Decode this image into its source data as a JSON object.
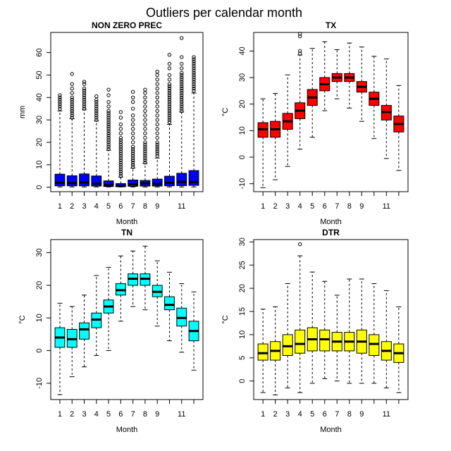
{
  "title": "Outliers per calendar month",
  "chart_data": [
    {
      "type": "box",
      "title": "NON ZERO PREC",
      "xlabel": "Month",
      "ylabel": "mm",
      "fill": "#0000ff",
      "ylim": [
        -2,
        69
      ],
      "yticks": [
        0,
        10,
        20,
        30,
        40,
        50,
        60
      ],
      "xticks": [
        "1",
        "2",
        "3",
        "4",
        "5",
        "6",
        "7",
        "8",
        "9",
        "11"
      ],
      "boxes": [
        {
          "month": 1,
          "min": 0.1,
          "q1": 0.6,
          "median": 2.0,
          "q3": 5.8,
          "max": 34.0,
          "outliers": [
            35,
            36,
            37,
            38,
            39,
            40,
            41
          ]
        },
        {
          "month": 2,
          "min": 0.1,
          "q1": 0.6,
          "median": 1.8,
          "q3": 5.1,
          "max": 30.5,
          "outliers": [
            31,
            32,
            33,
            34,
            35,
            36,
            37,
            38,
            39,
            40,
            42,
            44,
            46,
            50.5
          ]
        },
        {
          "month": 3,
          "min": 0.1,
          "q1": 0.6,
          "median": 2.1,
          "q3": 5.9,
          "max": 34.5,
          "outliers": [
            35,
            36,
            37,
            38,
            39,
            40,
            41,
            42,
            43,
            44,
            46,
            47
          ]
        },
        {
          "month": 4,
          "min": 0.1,
          "q1": 0.5,
          "median": 1.6,
          "q3": 5.0,
          "max": 29.5,
          "outliers": [
            30,
            31,
            32,
            33,
            34,
            35,
            36,
            37,
            38,
            39,
            40.5
          ]
        },
        {
          "month": 5,
          "min": 0.1,
          "q1": 0.3,
          "median": 0.9,
          "q3": 2.8,
          "max": 16.5,
          "outliers": [
            17,
            18,
            19,
            20,
            21,
            22,
            23,
            24,
            25,
            26,
            27,
            28,
            29,
            30,
            31,
            32,
            33,
            34,
            36,
            38,
            41,
            43.5
          ]
        },
        {
          "month": 6,
          "min": 0.1,
          "q1": 0.2,
          "median": 0.6,
          "q3": 1.6,
          "max": 4.5,
          "outliers": [
            5,
            6,
            7,
            8,
            9,
            10,
            11,
            12,
            13,
            14,
            15,
            16,
            17,
            18,
            19,
            20,
            21,
            22,
            24,
            26,
            28,
            31,
            33.5
          ]
        },
        {
          "month": 7,
          "min": 0.1,
          "q1": 0.4,
          "median": 1.3,
          "q3": 3.2,
          "max": 8.5,
          "outliers": [
            9,
            10,
            11,
            12,
            13,
            14,
            15,
            16,
            17,
            18,
            20,
            22,
            24,
            26,
            28,
            30,
            32,
            35,
            38,
            40,
            42.5
          ]
        },
        {
          "month": 8,
          "min": 0.1,
          "q1": 0.5,
          "median": 1.7,
          "q3": 3.0,
          "max": 10.5,
          "outliers": [
            11,
            12,
            13,
            14,
            15,
            16,
            17,
            18,
            19,
            20,
            22,
            24,
            26,
            28,
            30,
            32,
            34,
            36,
            38,
            40,
            42,
            43.5
          ]
        },
        {
          "month": 9,
          "min": 0.1,
          "q1": 0.5,
          "median": 1.5,
          "q3": 3.6,
          "max": 13.0,
          "outliers": [
            14,
            15,
            16,
            17,
            18,
            19,
            20,
            22,
            24,
            26,
            28,
            30,
            32,
            34,
            36,
            38,
            40,
            42,
            44,
            46,
            48,
            50,
            51.5
          ]
        },
        {
          "month": 10,
          "min": 0.1,
          "q1": 0.6,
          "median": 1.9,
          "q3": 4.9,
          "max": 28.0,
          "outliers": [
            29,
            30,
            31,
            32,
            33,
            34,
            35,
            36,
            37,
            38,
            39,
            40,
            41,
            42,
            43,
            44,
            45,
            46,
            48,
            50,
            53,
            55,
            59
          ]
        },
        {
          "month": 11,
          "min": 0.1,
          "q1": 0.7,
          "median": 2.4,
          "q3": 6.2,
          "max": 33.5,
          "outliers": [
            34,
            35,
            36,
            37,
            38,
            39,
            40,
            41,
            42,
            43,
            44,
            45,
            46,
            47,
            48,
            49,
            50,
            51,
            53,
            55,
            58,
            66.5
          ]
        },
        {
          "month": 12,
          "min": 0.1,
          "q1": 0.8,
          "median": 2.3,
          "q3": 7.4,
          "max": 42.0,
          "outliers": [
            43,
            44,
            45,
            46,
            47,
            48,
            49,
            50,
            51,
            52,
            53,
            54,
            55,
            56,
            57,
            58
          ]
        }
      ]
    },
    {
      "type": "box",
      "title": "TX",
      "xlabel": "Month",
      "ylabel": "°C",
      "fill": "#ff0000",
      "ylim": [
        -13,
        47
      ],
      "yticks": [
        -10,
        0,
        10,
        20,
        30,
        40
      ],
      "xticks": [
        "1",
        "2",
        "3",
        "4",
        "5",
        "6",
        "7",
        "8",
        "9",
        "11"
      ],
      "boxes": [
        {
          "month": 1,
          "min": -11.5,
          "q1": 7.5,
          "median": 10.5,
          "q3": 13.0,
          "max": 22.0,
          "outliers": []
        },
        {
          "month": 2,
          "min": -8.5,
          "q1": 7.5,
          "median": 10.5,
          "q3": 13.5,
          "max": 24.0,
          "outliers": []
        },
        {
          "month": 3,
          "min": -3.5,
          "q1": 10.5,
          "median": 13.5,
          "q3": 16.5,
          "max": 31.0,
          "outliers": []
        },
        {
          "month": 4,
          "min": 3.0,
          "q1": 14.5,
          "median": 17.5,
          "q3": 20.5,
          "max": 38.5,
          "outliers": [
            39,
            40,
            45.5,
            46.5
          ]
        },
        {
          "month": 5,
          "min": 7.5,
          "q1": 19.5,
          "median": 22.5,
          "q3": 25.5,
          "max": 41.0,
          "outliers": []
        },
        {
          "month": 6,
          "min": 17.5,
          "q1": 25.0,
          "median": 27.5,
          "q3": 30.0,
          "max": 43.5,
          "outliers": []
        },
        {
          "month": 7,
          "min": 22.0,
          "q1": 28.5,
          "median": 30.0,
          "q3": 31.5,
          "max": 40.5,
          "outliers": []
        },
        {
          "month": 8,
          "min": 18.5,
          "q1": 28.5,
          "median": 30.0,
          "q3": 31.5,
          "max": 43.0,
          "outliers": []
        },
        {
          "month": 9,
          "min": 13.5,
          "q1": 24.5,
          "median": 26.5,
          "q3": 28.5,
          "max": 41.5,
          "outliers": []
        },
        {
          "month": 10,
          "min": 7.0,
          "q1": 19.5,
          "median": 22.0,
          "q3": 24.5,
          "max": 38.0,
          "outliers": []
        },
        {
          "month": 11,
          "min": -0.5,
          "q1": 14.0,
          "median": 17.0,
          "q3": 19.5,
          "max": 37.0,
          "outliers": []
        },
        {
          "month": 12,
          "min": -5.0,
          "q1": 9.5,
          "median": 12.5,
          "q3": 15.5,
          "max": 27.0,
          "outliers": []
        }
      ]
    },
    {
      "type": "box",
      "title": "TN",
      "xlabel": "Month",
      "ylabel": "°C",
      "fill": "#00ffff",
      "ylim": [
        -15,
        34
      ],
      "yticks": [
        -10,
        0,
        10,
        20,
        30
      ],
      "xticks": [
        "1",
        "2",
        "3",
        "4",
        "5",
        "6",
        "7",
        "8",
        "9",
        "11"
      ],
      "boxes": [
        {
          "month": 1,
          "min": -13.5,
          "q1": 1.0,
          "median": 4.0,
          "q3": 7.0,
          "max": 14.5,
          "outliers": []
        },
        {
          "month": 2,
          "min": -8.0,
          "q1": 1.0,
          "median": 3.5,
          "q3": 6.5,
          "max": 13.5,
          "outliers": []
        },
        {
          "month": 3,
          "min": -5.0,
          "q1": 3.5,
          "median": 6.5,
          "q3": 8.5,
          "max": 17.0,
          "outliers": []
        },
        {
          "month": 4,
          "min": -1.5,
          "q1": 7.0,
          "median": 9.5,
          "q3": 11.5,
          "max": 23.0,
          "outliers": []
        },
        {
          "month": 5,
          "min": 0.0,
          "q1": 11.5,
          "median": 13.5,
          "q3": 15.5,
          "max": 25.5,
          "outliers": []
        },
        {
          "month": 6,
          "min": 9.0,
          "q1": 17.0,
          "median": 18.5,
          "q3": 20.5,
          "max": 29.0,
          "outliers": []
        },
        {
          "month": 7,
          "min": 13.5,
          "q1": 20.0,
          "median": 22.0,
          "q3": 23.5,
          "max": 30.5,
          "outliers": []
        },
        {
          "month": 8,
          "min": 12.5,
          "q1": 20.0,
          "median": 22.0,
          "q3": 23.5,
          "max": 32.0,
          "outliers": []
        },
        {
          "month": 9,
          "min": 7.5,
          "q1": 16.5,
          "median": 18.0,
          "q3": 20.0,
          "max": 27.5,
          "outliers": []
        },
        {
          "month": 10,
          "min": 3.0,
          "q1": 12.5,
          "median": 14.0,
          "q3": 16.5,
          "max": 24.0,
          "outliers": []
        },
        {
          "month": 11,
          "min": -0.5,
          "q1": 7.5,
          "median": 10.0,
          "q3": 13.0,
          "max": 20.5,
          "outliers": []
        },
        {
          "month": 12,
          "min": -6.0,
          "q1": 3.0,
          "median": 6.0,
          "q3": 9.0,
          "max": 18.0,
          "outliers": []
        }
      ]
    },
    {
      "type": "box",
      "title": "DTR",
      "xlabel": "Month",
      "ylabel": "°C",
      "fill": "#ffff00",
      "ylim": [
        -4,
        30.5
      ],
      "yticks": [
        0,
        5,
        10,
        15,
        20,
        25,
        30
      ],
      "xticks": [
        "1",
        "2",
        "3",
        "4",
        "5",
        "6",
        "7",
        "8",
        "9",
        "11"
      ],
      "boxes": [
        {
          "month": 1,
          "min": -2.5,
          "q1": 4.5,
          "median": 6.0,
          "q3": 8.0,
          "max": 15.5,
          "outliers": []
        },
        {
          "month": 2,
          "min": -3.0,
          "q1": 4.5,
          "median": 6.5,
          "q3": 8.5,
          "max": 16.0,
          "outliers": []
        },
        {
          "month": 3,
          "min": -1.5,
          "q1": 5.5,
          "median": 7.5,
          "q3": 10.0,
          "max": 21.0,
          "outliers": []
        },
        {
          "month": 4,
          "min": -2.5,
          "q1": 6.0,
          "median": 8.0,
          "q3": 11.0,
          "max": 27.0,
          "outliers": [
            29.5
          ]
        },
        {
          "month": 5,
          "min": -0.5,
          "q1": 6.5,
          "median": 9.0,
          "q3": 11.5,
          "max": 23.5,
          "outliers": []
        },
        {
          "month": 6,
          "min": 0.5,
          "q1": 6.5,
          "median": 9.0,
          "q3": 11.0,
          "max": 21.5,
          "outliers": []
        },
        {
          "month": 7,
          "min": 0.0,
          "q1": 6.5,
          "median": 8.5,
          "q3": 10.5,
          "max": 18.5,
          "outliers": []
        },
        {
          "month": 8,
          "min": -0.5,
          "q1": 6.5,
          "median": 8.5,
          "q3": 10.5,
          "max": 22.0,
          "outliers": []
        },
        {
          "month": 9,
          "min": -0.5,
          "q1": 6.0,
          "median": 8.5,
          "q3": 11.0,
          "max": 22.0,
          "outliers": []
        },
        {
          "month": 10,
          "min": -0.5,
          "q1": 5.5,
          "median": 8.0,
          "q3": 10.0,
          "max": 21.0,
          "outliers": []
        },
        {
          "month": 11,
          "min": -1.5,
          "q1": 4.5,
          "median": 6.5,
          "q3": 8.5,
          "max": 19.5,
          "outliers": []
        },
        {
          "month": 12,
          "min": -2.5,
          "q1": 4.0,
          "median": 6.0,
          "q3": 8.0,
          "max": 16.0,
          "outliers": []
        }
      ]
    }
  ]
}
